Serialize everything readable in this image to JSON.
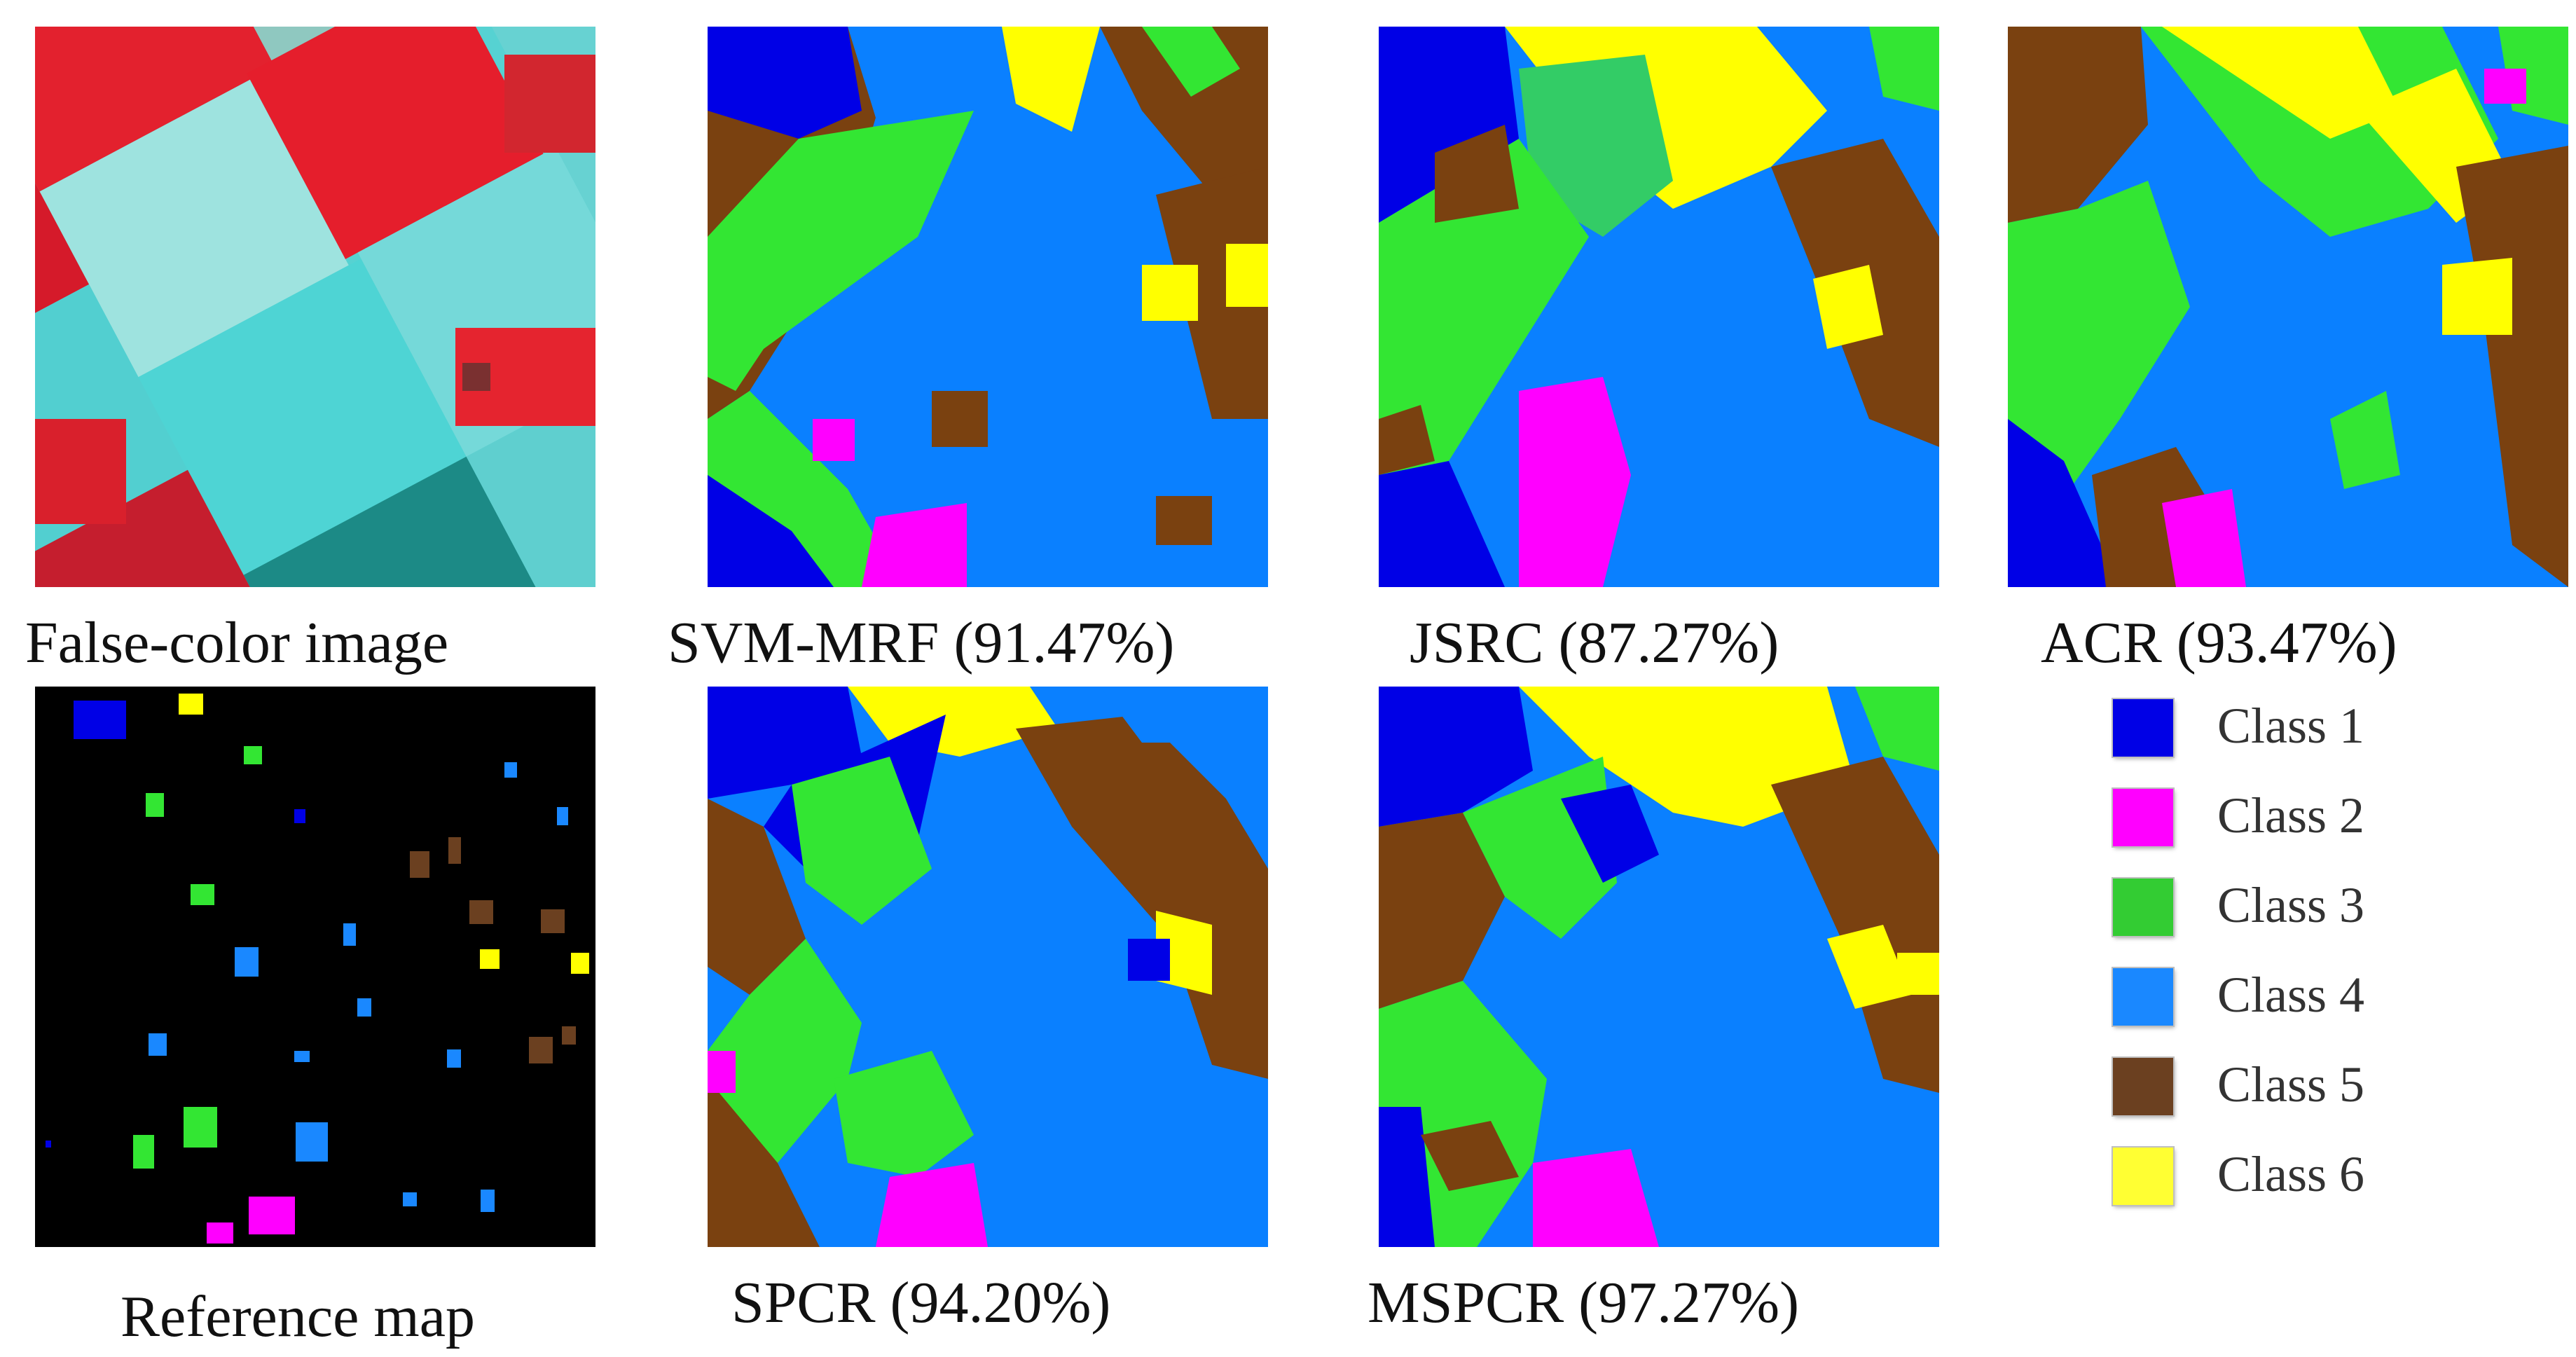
{
  "figure": {
    "panels": [
      {
        "id": "false-color",
        "caption": "False-color image"
      },
      {
        "id": "svm-mrf",
        "caption": "SVM-MRF (91.47%)"
      },
      {
        "id": "jsrc",
        "caption": "JSRC (87.27%)"
      },
      {
        "id": "acr",
        "caption": "ACR (93.47%)"
      },
      {
        "id": "reference",
        "caption": "Reference map"
      },
      {
        "id": "spcr",
        "caption": "SPCR (94.20%)"
      },
      {
        "id": "mspcr",
        "caption": "MSPCR (97.27%)"
      }
    ]
  },
  "legend": {
    "items": [
      {
        "label": "Class 1",
        "color": "#0000e6"
      },
      {
        "label": "Class 2",
        "color": "#ff00ff"
      },
      {
        "label": "Class 3",
        "color": "#33cc33"
      },
      {
        "label": "Class 4",
        "color": "#1a88ff"
      },
      {
        "label": "Class 5",
        "color": "#6b4020"
      },
      {
        "label": "Class 6",
        "color": "#ffff33"
      }
    ]
  },
  "colors": {
    "class1": "#0000e6",
    "class2": "#ff00ff",
    "class3": "#33e633",
    "class4": "#0a80ff",
    "class5": "#7a4110",
    "class6": "#ffff00",
    "false_red": "#e0202c",
    "false_cyan": "#4fd6d6"
  }
}
